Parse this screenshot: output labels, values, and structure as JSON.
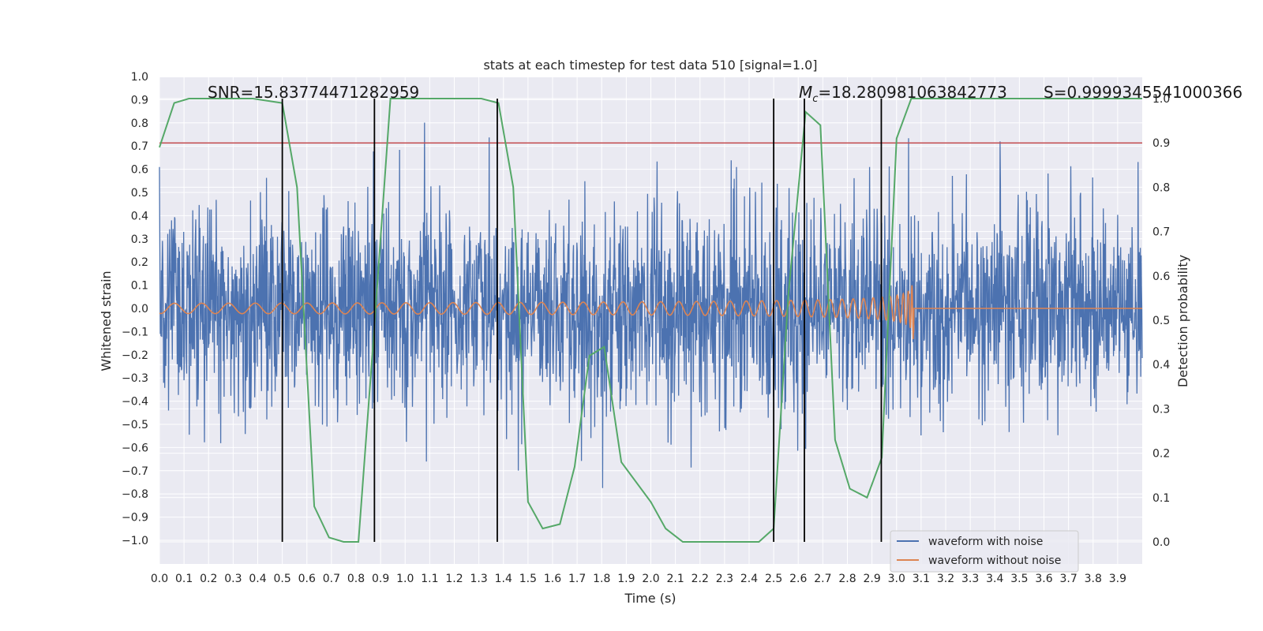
{
  "chart_data": {
    "type": "line",
    "title": "stats at each timestep for test data 510 [signal=1.0]",
    "xlabel": "Time (s)",
    "ylabel": "Whitened strain",
    "ylabel_right": "Detection probability",
    "xlim": [
      0.0,
      4.0
    ],
    "ylim": [
      -1.0,
      1.0
    ],
    "ylim_right": [
      0.0,
      1.0
    ],
    "x_ticks": [
      0.0,
      0.1,
      0.2,
      0.3,
      0.4,
      0.5,
      0.6,
      0.7,
      0.8,
      0.9,
      1.0,
      1.1,
      1.2,
      1.3,
      1.4,
      1.5,
      1.6,
      1.7,
      1.8,
      1.9,
      2.0,
      2.1,
      2.2,
      2.3,
      2.4,
      2.5,
      2.6,
      2.7,
      2.8,
      2.9,
      3.0,
      3.1,
      3.2,
      3.3,
      3.4,
      3.5,
      3.6,
      3.7,
      3.8,
      3.9
    ],
    "x_tick_labels": [
      "0.0",
      "0.1",
      "0.2",
      "0.3",
      "0.4",
      "0.5",
      "0.6",
      "0.7",
      "0.8",
      "0.9",
      "1.0",
      "1.1",
      "1.2",
      "1.3",
      "1.4",
      "1.5",
      "1.6",
      "1.7",
      "1.8",
      "1.9",
      "2.0",
      "2.1",
      "2.2",
      "2.3",
      "2.4",
      "2.5",
      "2.6",
      "2.7",
      "2.8",
      "2.9",
      "3.0",
      "3.1",
      "3.2",
      "3.3",
      "3.4",
      "3.5",
      "3.6",
      "3.7",
      "3.8",
      "3.9"
    ],
    "y_ticks": [
      -1.0,
      -0.9,
      -0.8,
      -0.7,
      -0.6,
      -0.5,
      -0.4,
      -0.3,
      -0.2,
      -0.1,
      0.0,
      0.1,
      0.2,
      0.3,
      0.4,
      0.5,
      0.6,
      0.7,
      0.8,
      0.9,
      1.0
    ],
    "y_tick_labels": [
      "−1.0",
      "−0.9",
      "−0.8",
      "−0.7",
      "−0.6",
      "−0.5",
      "−0.4",
      "−0.3",
      "−0.2",
      "−0.1",
      "0.0",
      "0.1",
      "0.2",
      "0.3",
      "0.4",
      "0.5",
      "0.6",
      "0.7",
      "0.8",
      "0.9",
      "1.0"
    ],
    "y_right_ticks": [
      0.0,
      0.1,
      0.2,
      0.3,
      0.4,
      0.5,
      0.6,
      0.7,
      0.8,
      0.9,
      1.0
    ],
    "y_right_tick_labels": [
      "0.0",
      "0.1",
      "0.2",
      "0.3",
      "0.4",
      "0.5",
      "0.6",
      "0.7",
      "0.8",
      "0.9",
      "1.0"
    ],
    "grid": true,
    "legend_position": "bottom-right",
    "annotations": {
      "snr": "SNR=15.83774471282959",
      "mc_symbol": "M",
      "mc_subscript": "c",
      "mc_value": "=18.280981063842773",
      "s": "S=0.9999345541000366"
    },
    "series": [
      {
        "name": "waveform with noise",
        "color": "#4c72b0",
        "description_kind": "noise",
        "amplitude_std": 0.22,
        "x_range": [
          0.0,
          4.0
        ]
      },
      {
        "name": "waveform without noise",
        "color": "#dd8452",
        "description_kind": "chirp",
        "merger_time": 3.07,
        "x_range": [
          0.0,
          4.0
        ]
      },
      {
        "name": "detection probability",
        "color": "#55a868",
        "axis": "right",
        "x": [
          0.0,
          0.06,
          0.12,
          0.25,
          0.38,
          0.5,
          0.56,
          0.63,
          0.69,
          0.75,
          0.81,
          0.87,
          0.94,
          1.0,
          1.13,
          1.25,
          1.31,
          1.38,
          1.44,
          1.5,
          1.56,
          1.63,
          1.69,
          1.75,
          1.81,
          1.88,
          2.0,
          2.06,
          2.13,
          2.25,
          2.38,
          2.44,
          2.5,
          2.56,
          2.63,
          2.69,
          2.75,
          2.81,
          2.88,
          2.94,
          3.0,
          3.06,
          3.13,
          3.25,
          3.5,
          3.75,
          4.0
        ],
        "y": [
          0.89,
          0.99,
          1.0,
          1.0,
          1.0,
          0.99,
          0.8,
          0.08,
          0.01,
          0.0,
          0.0,
          0.45,
          1.0,
          1.0,
          1.0,
          1.0,
          1.0,
          0.99,
          0.8,
          0.09,
          0.03,
          0.04,
          0.17,
          0.42,
          0.44,
          0.18,
          0.09,
          0.03,
          0.0,
          0.0,
          0.0,
          0.0,
          0.03,
          0.56,
          0.97,
          0.94,
          0.23,
          0.12,
          0.1,
          0.19,
          0.91,
          1.0,
          1.0,
          1.0,
          1.0,
          1.0,
          1.0
        ]
      }
    ],
    "hlines_right": [
      {
        "y": 0.9,
        "color": "#c44e52"
      }
    ],
    "vlines": [
      0.5,
      0.875,
      1.375,
      2.5,
      2.625,
      2.938
    ]
  }
}
